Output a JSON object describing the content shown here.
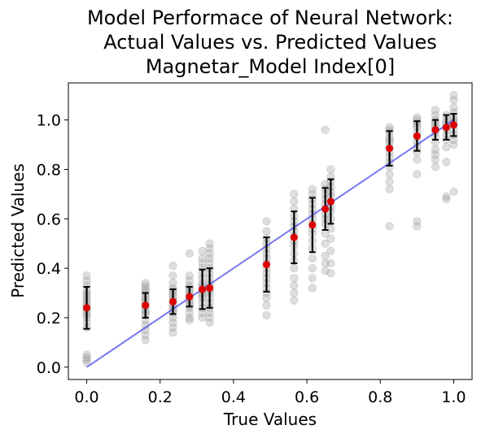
{
  "chart_data": {
    "type": "scatter",
    "title_lines": [
      "Model Performace of Neural Network:",
      "Actual Values vs. Predicted Values",
      "Magnetar_Model Index[0]"
    ],
    "xlabel": "True Values",
    "ylabel": "Predicted Values",
    "xlim": [
      -0.05,
      1.05
    ],
    "ylim": [
      -0.05,
      1.15
    ],
    "x_ticks": [
      0.0,
      0.2,
      0.4,
      0.6,
      0.8,
      1.0
    ],
    "x_tick_labels": [
      "0.0",
      "0.2",
      "0.4",
      "0.6",
      "0.8",
      "1.0"
    ],
    "y_ticks": [
      0.0,
      0.2,
      0.4,
      0.6,
      0.8,
      1.0
    ],
    "y_tick_labels": [
      "0.0",
      "0.2",
      "0.4",
      "0.6",
      "0.8",
      "1.0"
    ],
    "grid": false,
    "identity_line": {
      "x": [
        0.0,
        1.0
      ],
      "y": [
        0.0,
        1.0
      ],
      "color": "#5555ee"
    },
    "colors": {
      "points": "#a0a0a0",
      "means": "#dd0000",
      "error_bars": "#000000"
    },
    "groups": [
      {
        "x": 0.0,
        "mean": 0.24,
        "std": 0.085,
        "points": [
          0.02,
          0.03,
          0.04,
          0.05,
          0.16,
          0.18,
          0.2,
          0.21,
          0.22,
          0.23,
          0.24,
          0.25,
          0.26,
          0.27,
          0.28,
          0.29,
          0.3,
          0.31,
          0.33,
          0.35,
          0.37
        ]
      },
      {
        "x": 0.16,
        "mean": 0.25,
        "std": 0.05,
        "points": [
          0.11,
          0.13,
          0.15,
          0.17,
          0.19,
          0.21,
          0.22,
          0.23,
          0.24,
          0.25,
          0.26,
          0.27,
          0.28,
          0.29,
          0.3,
          0.31,
          0.32,
          0.33,
          0.34
        ]
      },
      {
        "x": 0.235,
        "mean": 0.265,
        "std": 0.05,
        "points": [
          0.14,
          0.16,
          0.18,
          0.2,
          0.22,
          0.23,
          0.24,
          0.25,
          0.26,
          0.27,
          0.28,
          0.29,
          0.3,
          0.31,
          0.32,
          0.34,
          0.37,
          0.41
        ]
      },
      {
        "x": 0.28,
        "mean": 0.285,
        "std": 0.04,
        "points": [
          0.19,
          0.2,
          0.22,
          0.24,
          0.25,
          0.26,
          0.27,
          0.28,
          0.29,
          0.3,
          0.31,
          0.32,
          0.33,
          0.35,
          0.37,
          0.46
        ]
      },
      {
        "x": 0.315,
        "mean": 0.315,
        "std": 0.08,
        "points": [
          0.2,
          0.22,
          0.24,
          0.26,
          0.28,
          0.29,
          0.3,
          0.31,
          0.32,
          0.33,
          0.34,
          0.36,
          0.38,
          0.4,
          0.42,
          0.44,
          0.47
        ]
      },
      {
        "x": 0.335,
        "mean": 0.32,
        "std": 0.08,
        "points": [
          0.18,
          0.2,
          0.22,
          0.24,
          0.26,
          0.28,
          0.3,
          0.31,
          0.32,
          0.33,
          0.34,
          0.36,
          0.38,
          0.4,
          0.42,
          0.44,
          0.46,
          0.48,
          0.5
        ]
      },
      {
        "x": 0.49,
        "mean": 0.415,
        "std": 0.11,
        "points": [
          0.21,
          0.25,
          0.28,
          0.3,
          0.32,
          0.34,
          0.36,
          0.38,
          0.4,
          0.42,
          0.44,
          0.46,
          0.48,
          0.5,
          0.52,
          0.55,
          0.59
        ]
      },
      {
        "x": 0.565,
        "mean": 0.525,
        "std": 0.105,
        "points": [
          0.27,
          0.3,
          0.33,
          0.36,
          0.4,
          0.43,
          0.46,
          0.49,
          0.51,
          0.53,
          0.55,
          0.57,
          0.59,
          0.61,
          0.64,
          0.67,
          0.7
        ]
      },
      {
        "x": 0.615,
        "mean": 0.575,
        "std": 0.11,
        "points": [
          0.32,
          0.36,
          0.4,
          0.44,
          0.48,
          0.51,
          0.54,
          0.56,
          0.58,
          0.6,
          0.62,
          0.64,
          0.66,
          0.68,
          0.7,
          0.72
        ]
      },
      {
        "x": 0.65,
        "mean": 0.64,
        "std": 0.085,
        "points": [
          0.39,
          0.42,
          0.45,
          0.5,
          0.54,
          0.58,
          0.6,
          0.62,
          0.64,
          0.66,
          0.68,
          0.7,
          0.72,
          0.74,
          0.96
        ]
      },
      {
        "x": 0.665,
        "mean": 0.67,
        "std": 0.09,
        "points": [
          0.38,
          0.42,
          0.47,
          0.52,
          0.56,
          0.6,
          0.63,
          0.65,
          0.67,
          0.69,
          0.71,
          0.73,
          0.75,
          0.77,
          0.8
        ]
      },
      {
        "x": 0.825,
        "mean": 0.885,
        "std": 0.07,
        "points": [
          0.57,
          0.72,
          0.75,
          0.78,
          0.81,
          0.83,
          0.85,
          0.87,
          0.89,
          0.91,
          0.92,
          0.93,
          0.95,
          0.96,
          0.97
        ]
      },
      {
        "x": 0.9,
        "mean": 0.935,
        "std": 0.06,
        "points": [
          0.57,
          0.59,
          0.78,
          0.84,
          0.87,
          0.89,
          0.91,
          0.93,
          0.95,
          0.97,
          0.98,
          0.99,
          1.0,
          1.01
        ]
      },
      {
        "x": 0.95,
        "mean": 0.96,
        "std": 0.04,
        "points": [
          0.81,
          0.84,
          0.86,
          0.88,
          0.91,
          0.93,
          0.95,
          0.96,
          0.97,
          0.98,
          0.99,
          1.0,
          1.02,
          1.04
        ]
      },
      {
        "x": 0.98,
        "mean": 0.97,
        "std": 0.05,
        "points": [
          0.68,
          0.69,
          0.83,
          0.89,
          0.92,
          0.94,
          0.96,
          0.97,
          0.98,
          0.99,
          1.0,
          1.02
        ]
      },
      {
        "x": 1.0,
        "mean": 0.98,
        "std": 0.045,
        "points": [
          0.71,
          0.9,
          0.92,
          0.94,
          0.96,
          0.98,
          0.99,
          1.0,
          1.01,
          1.03,
          1.05,
          1.08,
          1.1
        ]
      }
    ]
  }
}
